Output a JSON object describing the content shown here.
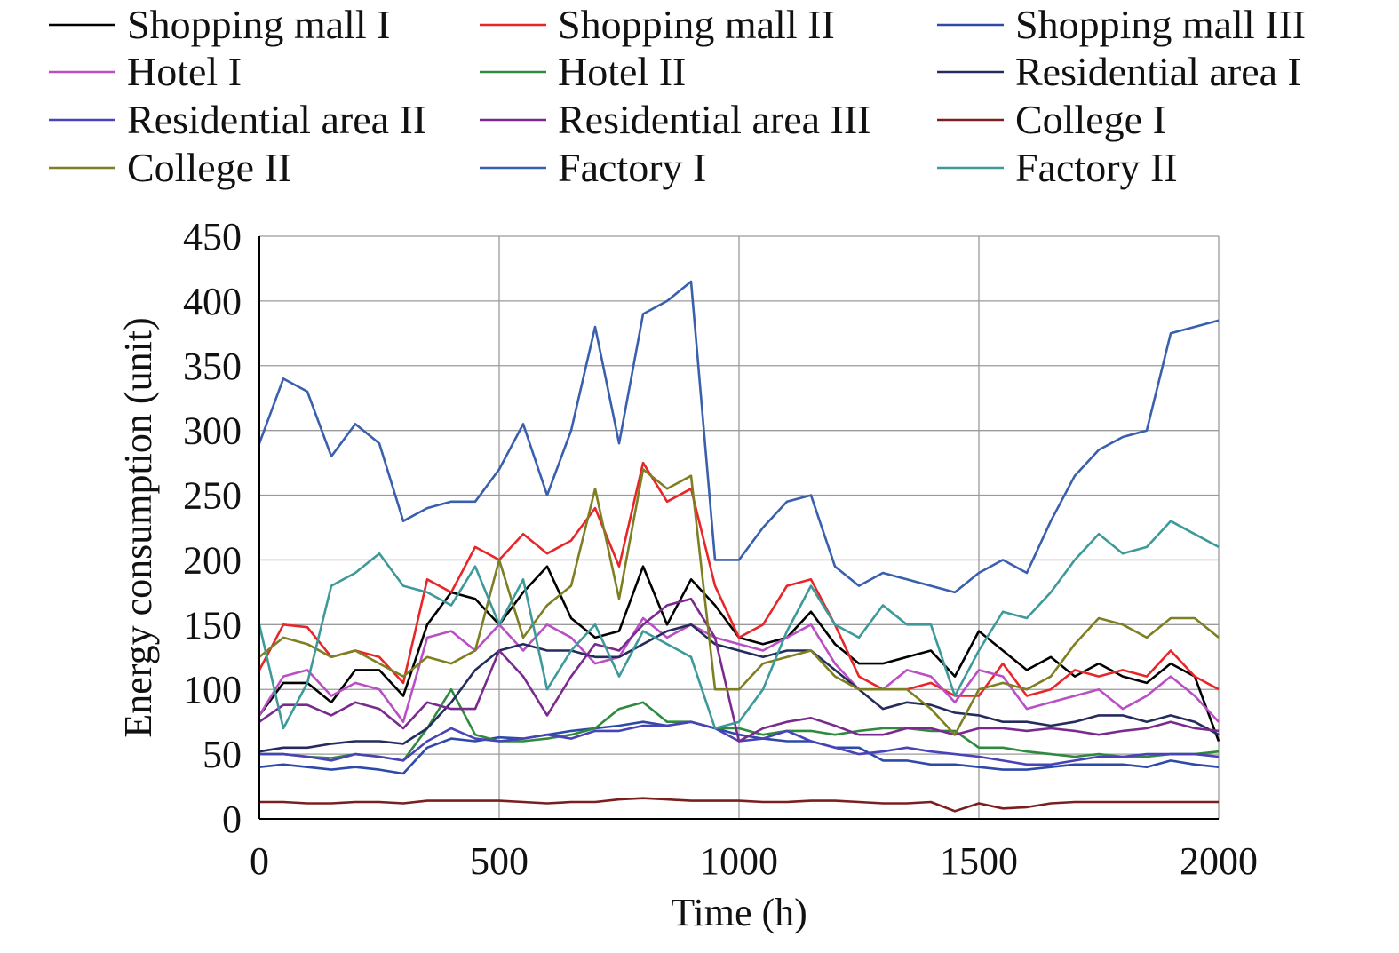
{
  "chart_data": {
    "type": "line",
    "xlabel": "Time (h)",
    "ylabel": "Energy consumption (unit)",
    "xlim": [
      0,
      2000
    ],
    "ylim": [
      0,
      450
    ],
    "x_ticks": [
      0,
      500,
      1000,
      1500,
      2000
    ],
    "y_ticks": [
      0,
      50,
      100,
      150,
      200,
      250,
      300,
      350,
      400,
      450
    ],
    "grid": true,
    "legend_position": "top",
    "x": [
      0,
      50,
      100,
      150,
      200,
      250,
      300,
      350,
      400,
      450,
      500,
      550,
      600,
      650,
      700,
      750,
      800,
      850,
      900,
      950,
      1000,
      1050,
      1100,
      1150,
      1200,
      1250,
      1300,
      1350,
      1400,
      1450,
      1500,
      1550,
      1600,
      1650,
      1700,
      1750,
      1800,
      1850,
      1900,
      1950,
      2000
    ],
    "series": [
      {
        "name": "Shopping mall I",
        "color": "#000000",
        "values": [
          80,
          105,
          105,
          90,
          115,
          115,
          95,
          150,
          175,
          170,
          150,
          175,
          195,
          155,
          140,
          145,
          195,
          150,
          185,
          165,
          140,
          135,
          140,
          160,
          135,
          120,
          120,
          125,
          130,
          110,
          145,
          130,
          115,
          125,
          110,
          120,
          110,
          105,
          120,
          110,
          60
        ]
      },
      {
        "name": "Shopping mall II",
        "color": "#e8262a",
        "values": [
          115,
          150,
          148,
          125,
          130,
          125,
          105,
          185,
          175,
          210,
          200,
          220,
          205,
          215,
          240,
          195,
          275,
          245,
          255,
          180,
          140,
          150,
          180,
          185,
          150,
          110,
          100,
          100,
          105,
          95,
          95,
          120,
          95,
          100,
          115,
          110,
          115,
          110,
          130,
          110,
          100
        ]
      },
      {
        "name": "Shopping mall III",
        "color": "#2e4aa8",
        "values": [
          40,
          42,
          40,
          38,
          40,
          38,
          35,
          55,
          62,
          60,
          63,
          62,
          65,
          68,
          70,
          72,
          75,
          72,
          75,
          70,
          65,
          62,
          60,
          60,
          55,
          55,
          45,
          45,
          42,
          42,
          40,
          38,
          38,
          40,
          42,
          42,
          42,
          40,
          45,
          42,
          40
        ]
      },
      {
        "name": "Hotel I",
        "color": "#b94fc4",
        "values": [
          80,
          110,
          115,
          95,
          105,
          100,
          75,
          140,
          145,
          130,
          150,
          130,
          150,
          140,
          120,
          125,
          155,
          140,
          150,
          140,
          135,
          130,
          140,
          150,
          120,
          100,
          100,
          115,
          110,
          90,
          115,
          110,
          85,
          90,
          95,
          100,
          85,
          95,
          110,
          95,
          75
        ]
      },
      {
        "name": "Hotel II",
        "color": "#2f8a3e",
        "values": [
          50,
          50,
          48,
          47,
          50,
          48,
          45,
          70,
          100,
          65,
          60,
          60,
          62,
          65,
          70,
          85,
          90,
          75,
          75,
          70,
          70,
          65,
          68,
          68,
          65,
          68,
          70,
          70,
          68,
          68,
          55,
          55,
          52,
          50,
          48,
          50,
          48,
          48,
          50,
          50,
          52
        ]
      },
      {
        "name": "Residential area I",
        "color": "#252c5c",
        "values": [
          52,
          55,
          55,
          58,
          60,
          60,
          58,
          70,
          90,
          115,
          130,
          135,
          130,
          130,
          125,
          125,
          135,
          145,
          150,
          135,
          130,
          125,
          130,
          130,
          115,
          100,
          85,
          90,
          88,
          82,
          80,
          75,
          75,
          72,
          75,
          80,
          80,
          75,
          80,
          75,
          65
        ]
      },
      {
        "name": "Residential area II",
        "color": "#4a42b8",
        "values": [
          50,
          50,
          48,
          45,
          50,
          48,
          45,
          60,
          70,
          62,
          60,
          62,
          65,
          62,
          68,
          68,
          72,
          72,
          75,
          70,
          60,
          62,
          68,
          60,
          55,
          50,
          52,
          55,
          52,
          50,
          48,
          45,
          42,
          42,
          45,
          48,
          48,
          50,
          50,
          50,
          48
        ]
      },
      {
        "name": "Residential area III",
        "color": "#7a2a8f",
        "values": [
          75,
          88,
          88,
          80,
          90,
          85,
          70,
          90,
          85,
          85,
          130,
          110,
          80,
          110,
          135,
          130,
          150,
          165,
          170,
          140,
          60,
          70,
          75,
          78,
          72,
          65,
          65,
          70,
          70,
          65,
          70,
          70,
          68,
          70,
          68,
          65,
          68,
          70,
          75,
          70,
          68
        ]
      },
      {
        "name": "College I",
        "color": "#7a1f1f",
        "values": [
          13,
          13,
          12,
          12,
          13,
          13,
          12,
          14,
          14,
          14,
          14,
          13,
          12,
          13,
          13,
          15,
          16,
          15,
          14,
          14,
          14,
          13,
          13,
          14,
          14,
          13,
          12,
          12,
          13,
          6,
          12,
          8,
          9,
          12,
          13,
          13,
          13,
          13,
          13,
          13,
          13
        ]
      },
      {
        "name": "College II",
        "color": "#7d7f22",
        "values": [
          125,
          140,
          135,
          125,
          130,
          120,
          110,
          125,
          120,
          130,
          200,
          140,
          165,
          180,
          255,
          170,
          270,
          255,
          265,
          100,
          100,
          120,
          125,
          130,
          110,
          100,
          100,
          100,
          85,
          65,
          100,
          105,
          100,
          110,
          135,
          155,
          150,
          140,
          155,
          155,
          140
        ]
      },
      {
        "name": "Factory I",
        "color": "#3a5fad",
        "values": [
          290,
          340,
          330,
          280,
          305,
          290,
          230,
          240,
          245,
          245,
          270,
          305,
          250,
          300,
          380,
          290,
          390,
          400,
          415,
          200,
          200,
          225,
          245,
          250,
          195,
          180,
          190,
          185,
          180,
          175,
          190,
          200,
          190,
          230,
          265,
          285,
          295,
          300,
          375,
          380,
          385
        ]
      },
      {
        "name": "Factory II",
        "color": "#3e9a9a",
        "values": [
          150,
          70,
          105,
          180,
          190,
          205,
          180,
          175,
          165,
          195,
          150,
          185,
          100,
          130,
          150,
          110,
          145,
          135,
          125,
          70,
          75,
          100,
          145,
          180,
          150,
          140,
          165,
          150,
          150,
          95,
          130,
          160,
          155,
          175,
          200,
          220,
          205,
          210,
          230,
          220,
          210
        ]
      }
    ]
  }
}
